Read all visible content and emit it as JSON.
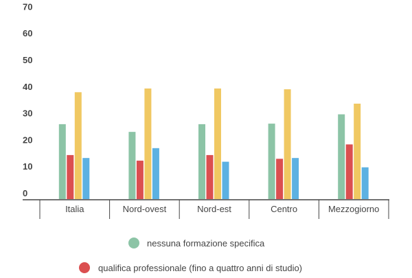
{
  "chart_data": {
    "type": "bar",
    "title": "",
    "xlabel": "",
    "ylabel": "",
    "ylim": [
      0,
      70
    ],
    "yticks": [
      0,
      10,
      20,
      30,
      40,
      50,
      60,
      70
    ],
    "grid": false,
    "legend_position": "bottom",
    "categories": [
      "Italia",
      "Nord-ovest",
      "Nord-est",
      "Centro",
      "Mezzogiorno"
    ],
    "series": [
      {
        "name": "nessuna formazione specifica",
        "color": "#8cc4a6",
        "values": [
          25.8,
          22.9,
          25.8,
          26.0,
          29.5
        ]
      },
      {
        "name": "qualifica professionale (fino a quattro anni di studio)",
        "color": "#db4f50",
        "values": [
          14.2,
          12.1,
          14.2,
          12.8,
          18.2
        ]
      },
      {
        "color": "#f0c862",
        "values": [
          37.8,
          39.2,
          39.2,
          38.9,
          33.5
        ]
      },
      {
        "color": "#5cb1e2",
        "values": [
          13.1,
          16.8,
          11.7,
          13.1,
          9.6
        ]
      }
    ]
  }
}
